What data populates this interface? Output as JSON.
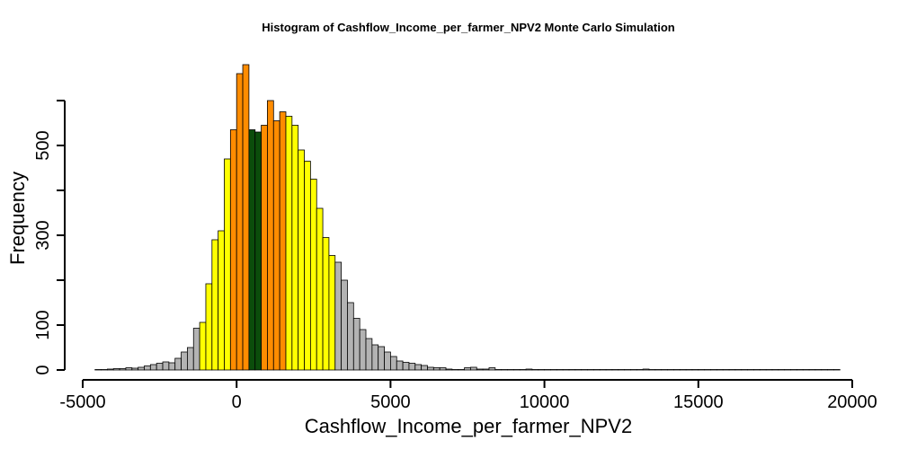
{
  "chart_data": {
    "type": "bar",
    "title": "Histogram of  Cashflow_Income_per_farmer_NPV2  Monte Carlo Simulation",
    "xlabel": "Cashflow_Income_per_farmer_NPV2",
    "ylabel": "Frequency",
    "xlim": [
      -5000,
      20000
    ],
    "ylim": [
      0,
      600
    ],
    "bin_width": 200,
    "bin_start": -4600,
    "x_ticks": [
      -5000,
      0,
      5000,
      10000,
      15000,
      20000
    ],
    "x_tick_labels": [
      "-5000",
      "0",
      "5000",
      "10000",
      "15000",
      "20000"
    ],
    "y_ticks": [
      0,
      100,
      300,
      500
    ],
    "y_tick_labels": [
      "0",
      "100",
      "300",
      "500"
    ],
    "values": [
      1,
      1,
      2,
      3,
      3,
      5,
      4,
      6,
      9,
      12,
      15,
      18,
      16,
      26,
      40,
      50,
      93,
      106,
      192,
      290,
      310,
      470,
      535,
      660,
      680,
      535,
      530,
      545,
      600,
      555,
      575,
      565,
      545,
      490,
      465,
      425,
      360,
      295,
      255,
      240,
      200,
      150,
      115,
      90,
      70,
      56,
      52,
      40,
      30,
      20,
      17,
      15,
      12,
      10,
      6,
      5,
      5,
      2,
      1,
      1,
      5,
      6,
      2,
      2,
      5,
      1,
      1,
      1,
      1,
      1,
      2,
      1,
      1,
      1,
      1,
      1,
      1,
      1,
      1,
      1,
      1,
      1,
      1,
      1,
      1,
      1,
      1,
      1,
      1,
      2,
      1,
      1,
      1,
      1,
      1,
      1,
      1,
      1,
      1,
      1,
      1,
      1,
      1,
      1,
      1,
      1,
      1,
      1,
      1,
      1,
      1,
      1,
      1,
      1,
      1,
      1,
      1,
      1,
      1,
      1,
      1
    ],
    "bin_color_groups": {
      "colors": {
        "gray": "#b3b3b3",
        "yellow": "#ffff00",
        "orange": "#ff8c00",
        "dark_green": "#0b4d0b"
      },
      "ranges": [
        {
          "color": "gray",
          "from": -4600,
          "to": -1200
        },
        {
          "color": "yellow",
          "from": -1200,
          "to": -200
        },
        {
          "color": "orange",
          "from": -200,
          "to": 400
        },
        {
          "color": "dark_green",
          "from": 400,
          "to": 800
        },
        {
          "color": "orange",
          "from": 800,
          "to": 1600
        },
        {
          "color": "yellow",
          "from": 1600,
          "to": 3200
        },
        {
          "color": "gray",
          "from": 3200,
          "to": 19600
        }
      ]
    }
  }
}
